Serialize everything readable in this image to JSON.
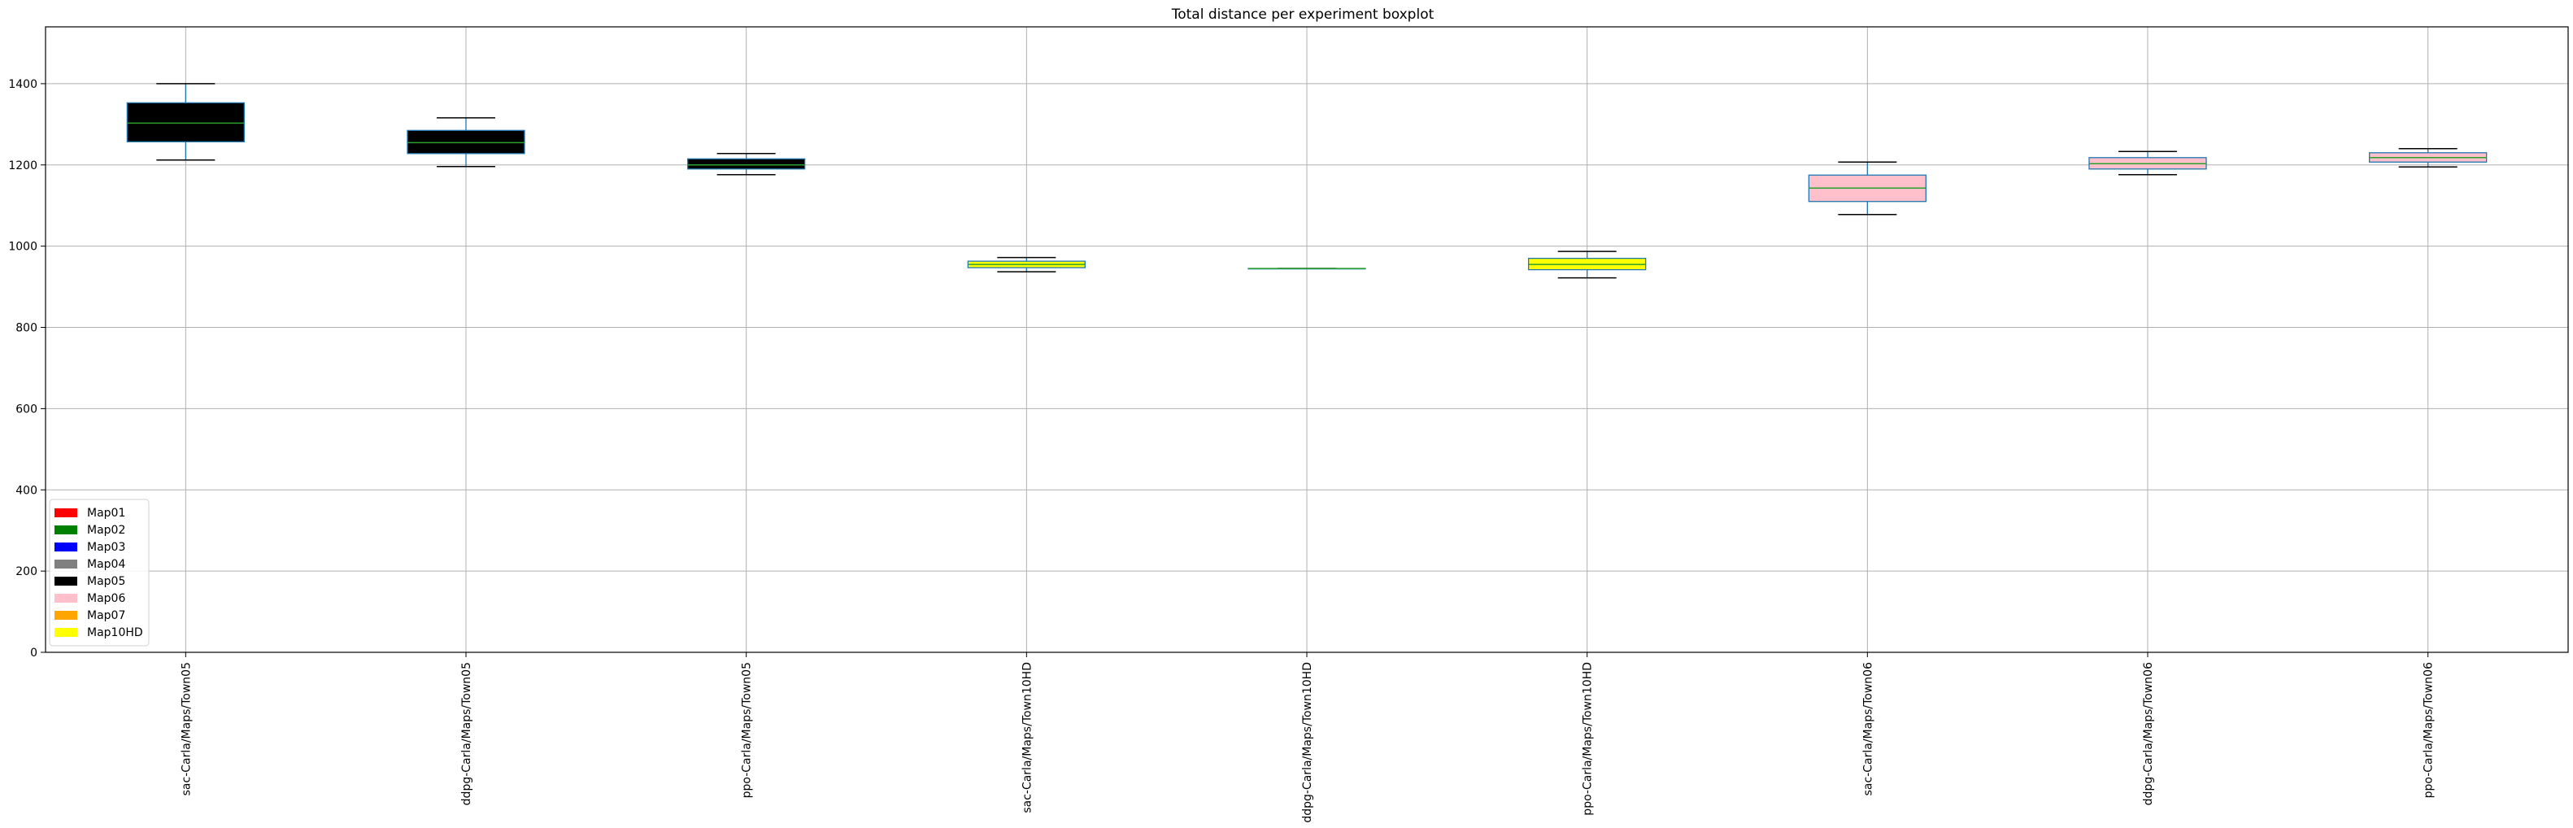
{
  "chart_data": {
    "type": "box",
    "title": "Total distance per experiment boxplot",
    "xlabel": "",
    "ylabel": "",
    "ylim": [
      0,
      1540
    ],
    "yticks": [
      0,
      200,
      400,
      600,
      800,
      1000,
      1200,
      1400
    ],
    "grid": true,
    "legend_position": "bottom-left",
    "legend": [
      {
        "label": "Map01",
        "color": "#ff0000"
      },
      {
        "label": "Map02",
        "color": "#008000"
      },
      {
        "label": "Map03",
        "color": "#0000ff"
      },
      {
        "label": "Map04",
        "color": "#808080"
      },
      {
        "label": "Map05",
        "color": "#000000"
      },
      {
        "label": "Map06",
        "color": "#ffc0cb"
      },
      {
        "label": "Map07",
        "color": "#ffa500"
      },
      {
        "label": "Map10HD",
        "color": "#ffff00"
      }
    ],
    "categories": [
      "sac-Carla/Maps/Town05",
      "ddpg-Carla/Maps/Town05",
      "ppo-Carla/Maps/Town05",
      "sac-Carla/Maps/Town10HD",
      "ddpg-Carla/Maps/Town10HD",
      "ppo-Carla/Maps/Town10HD",
      "sac-Carla/Maps/Town06",
      "ddpg-Carla/Maps/Town06",
      "ppo-Carla/Maps/Town06"
    ],
    "boxes": [
      {
        "whisker_low": 1212,
        "q1": 1257,
        "median": 1303,
        "q3": 1353,
        "whisker_high": 1400,
        "fill": "#000000",
        "edge": "#1f77b4",
        "median_color": "#2ca02c"
      },
      {
        "whisker_low": 1196,
        "q1": 1228,
        "median": 1255,
        "q3": 1285,
        "whisker_high": 1316,
        "fill": "#000000",
        "edge": "#1f77b4",
        "median_color": "#2ca02c"
      },
      {
        "whisker_low": 1176,
        "q1": 1190,
        "median": 1200,
        "q3": 1215,
        "whisker_high": 1228,
        "fill": "#000000",
        "edge": "#1f77b4",
        "median_color": "#2ca02c"
      },
      {
        "whisker_low": 937,
        "q1": 947,
        "median": 955,
        "q3": 963,
        "whisker_high": 972,
        "fill": "#ffff00",
        "edge": "#1f77b4",
        "median_color": "#2ca02c"
      },
      {
        "whisker_low": 945,
        "q1": 945,
        "median": 945,
        "q3": 945,
        "whisker_high": 945,
        "fill": "#ffff00",
        "edge": "#1f77b4",
        "median_color": "#2ca02c"
      },
      {
        "whisker_low": 922,
        "q1": 942,
        "median": 955,
        "q3": 970,
        "whisker_high": 987,
        "fill": "#ffff00",
        "edge": "#1f77b4",
        "median_color": "#2ca02c"
      },
      {
        "whisker_low": 1078,
        "q1": 1110,
        "median": 1143,
        "q3": 1175,
        "whisker_high": 1207,
        "fill": "#ffc0cb",
        "edge": "#1f77b4",
        "median_color": "#2ca02c"
      },
      {
        "whisker_low": 1176,
        "q1": 1190,
        "median": 1203,
        "q3": 1218,
        "whisker_high": 1233,
        "fill": "#ffc0cb",
        "edge": "#1f77b4",
        "median_color": "#2ca02c"
      },
      {
        "whisker_low": 1195,
        "q1": 1207,
        "median": 1218,
        "q3": 1230,
        "whisker_high": 1240,
        "fill": "#ffc0cb",
        "edge": "#1f77b4",
        "median_color": "#2ca02c"
      }
    ]
  }
}
